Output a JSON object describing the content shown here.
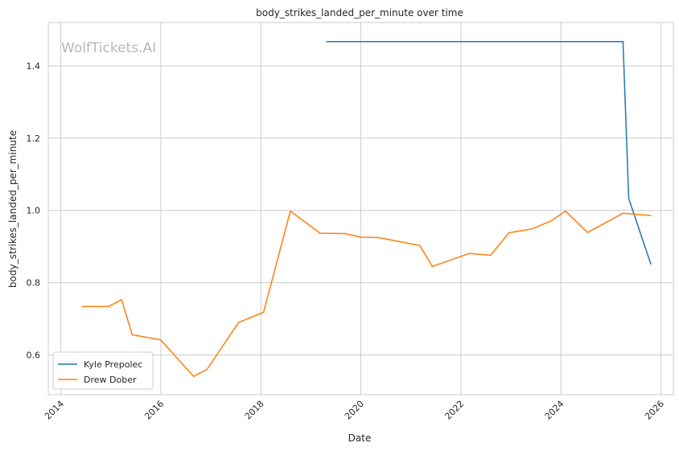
{
  "chart_data": {
    "type": "line",
    "title": "body_strikes_landed_per_minute over time",
    "xlabel": "Date",
    "ylabel": "body_strikes_landed_per_minute",
    "watermark": "WolfTickets.AI",
    "xlim": [
      "2013-10-01",
      "2026-04-01"
    ],
    "ylim": [
      0.49,
      1.52
    ],
    "x_ticks": [
      "2014",
      "2016",
      "2018",
      "2020",
      "2022",
      "2024",
      "2026"
    ],
    "y_ticks": [
      0.6,
      0.8,
      1.0,
      1.2,
      1.4
    ],
    "grid": true,
    "legend_position": "lower-left",
    "series": [
      {
        "name": "Kyle Prepolec",
        "color": "#1f77b4",
        "points": [
          [
            "2019-04-27",
            1.467
          ],
          [
            "2025-03-29",
            1.467
          ],
          [
            "2025-05-10",
            1.033
          ],
          [
            "2025-10-18",
            0.852
          ]
        ]
      },
      {
        "name": "Drew Dober",
        "color": "#ff7f0e",
        "points": [
          [
            "2014-06-07",
            0.734
          ],
          [
            "2014-12-13",
            0.734
          ],
          [
            "2015-03-21",
            0.753
          ],
          [
            "2015-06-06",
            0.656
          ],
          [
            "2015-12-31",
            0.642
          ],
          [
            "2016-08-27",
            0.541
          ],
          [
            "2016-12-03",
            0.56
          ],
          [
            "2017-07-22",
            0.69
          ],
          [
            "2018-01-20",
            0.718
          ],
          [
            "2018-08-04",
            0.998
          ],
          [
            "2019-03-09",
            0.937
          ],
          [
            "2019-09-07",
            0.936
          ],
          [
            "2019-12-31",
            0.926
          ],
          [
            "2020-05-09",
            0.925
          ],
          [
            "2021-03-06",
            0.903
          ],
          [
            "2021-06-05",
            0.845
          ],
          [
            "2022-03-05",
            0.881
          ],
          [
            "2022-08-06",
            0.876
          ],
          [
            "2022-12-17",
            0.938
          ],
          [
            "2023-06-03",
            0.949
          ],
          [
            "2023-10-21",
            0.971
          ],
          [
            "2024-02-03",
            0.998
          ],
          [
            "2024-07-13",
            0.939
          ],
          [
            "2025-03-29",
            0.992
          ],
          [
            "2025-10-18",
            0.986
          ]
        ]
      }
    ]
  }
}
